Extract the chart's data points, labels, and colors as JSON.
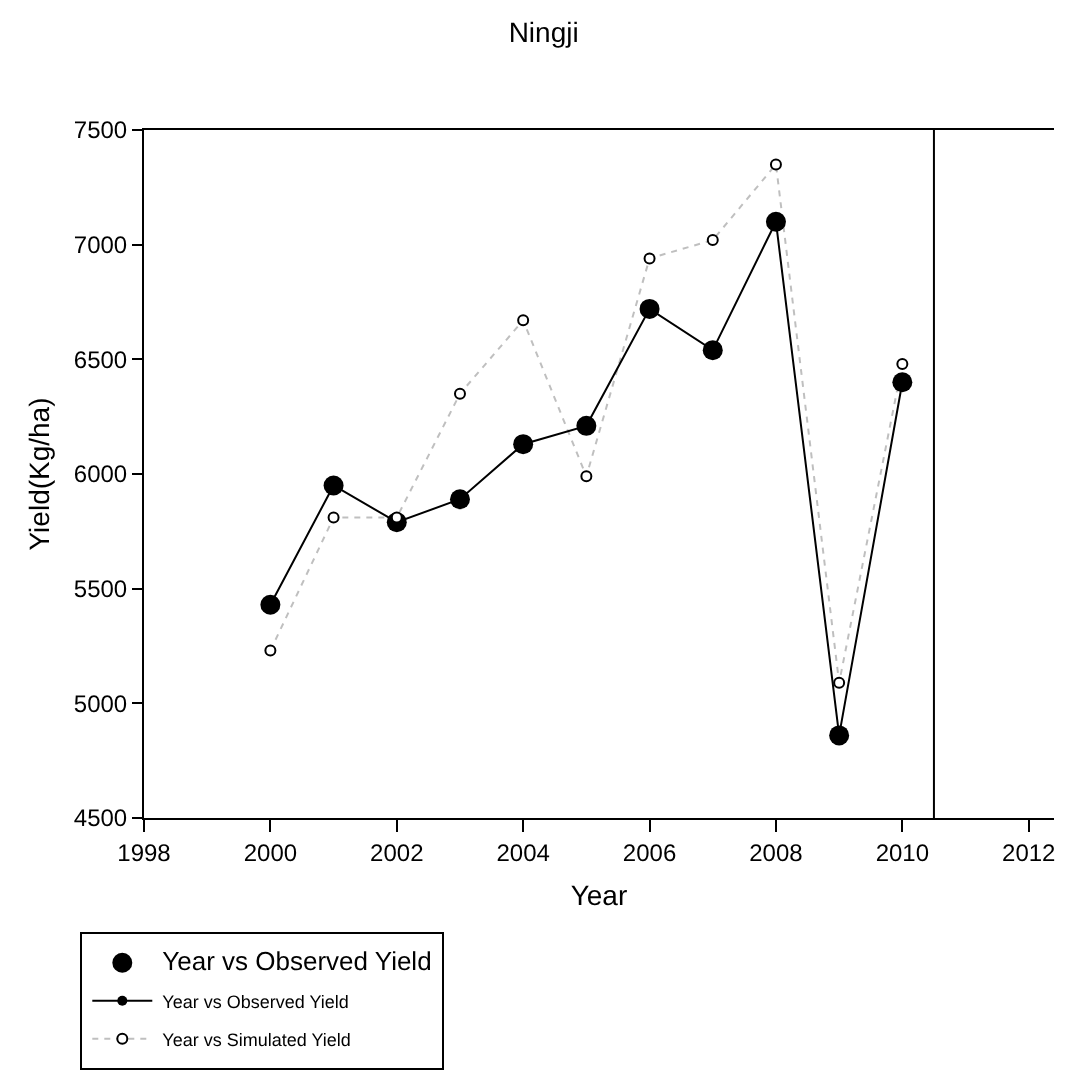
{
  "chart_data": {
    "type": "line",
    "title": "Ningji",
    "xlabel": "Year",
    "ylabel": "Yield(Kg/ha)",
    "x": [
      2000,
      2001,
      2002,
      2003,
      2004,
      2005,
      2006,
      2007,
      2008,
      2009,
      2010
    ],
    "xlim": [
      1998,
      2012.4
    ],
    "xticks": [
      1998,
      2000,
      2002,
      2004,
      2006,
      2008,
      2010,
      2012
    ],
    "ylim": [
      4500,
      7500
    ],
    "yticks": [
      4500,
      5000,
      5500,
      6000,
      6500,
      7000,
      7500
    ],
    "legend": "bottom left",
    "ref_lines": [
      {
        "axis": "x",
        "value": 2010.5,
        "color": "#000000"
      }
    ],
    "series": [
      {
        "name": "Year vs Observed Yield",
        "type": "scatter",
        "color": "#000000",
        "marker": "circle",
        "values": [
          5430,
          5950,
          5790,
          5890,
          6130,
          6210,
          6720,
          6540,
          7100,
          4860,
          6400
        ]
      },
      {
        "name": "Year vs Observed Yield",
        "type": "line",
        "color": "#000000",
        "marker": "circle",
        "line_style": "solid",
        "values": [
          5430,
          5950,
          5790,
          5890,
          6130,
          6210,
          6720,
          6540,
          7100,
          4860,
          6400
        ]
      },
      {
        "name": "Year vs Simulated Yield",
        "type": "line",
        "color": "#000000",
        "marker": "circle",
        "line_style": "dotted",
        "values": [
          5230,
          5810,
          5810,
          6350,
          6670,
          5990,
          6940,
          7020,
          7350,
          5090,
          6480
        ]
      }
    ]
  }
}
